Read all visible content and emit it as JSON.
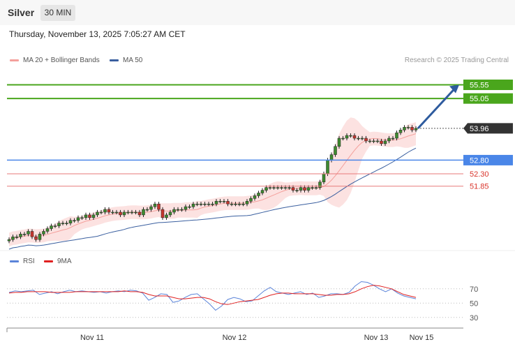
{
  "header": {
    "instrument": "Silver",
    "timeframe": "30 MIN",
    "datetime": "Thursday, November 13, 2025 7:05:27 AM CET"
  },
  "legend": {
    "ma20_label": "MA 20 + Bollinger Bands",
    "ma50_label": "MA 50",
    "rsi_label": "RSI",
    "rsi_ma_label": "9MA"
  },
  "credit": "Research © 2025 Trading Central",
  "colors": {
    "ma20": "#f4a09c",
    "ma50": "#3a5f9f",
    "target": "#4aa61c",
    "pivot": "#4a86e8",
    "support": "#e77a7a",
    "price": "#333333",
    "rsi": "#5b84d9",
    "rsi_ma": "#e02020",
    "arrow": "#2e5b9e"
  },
  "chart_data": [
    {
      "type": "candlestick",
      "title": "",
      "x_tick_labels": [
        "Nov 11",
        "Nov 12",
        "Nov 13",
        "Nov 15"
      ],
      "y_range": [
        49.6,
        56.2
      ],
      "levels": [
        {
          "value": 55.55,
          "label": "55.55",
          "kind": "target"
        },
        {
          "value": 55.05,
          "label": "55.05",
          "kind": "target"
        },
        {
          "value": 53.96,
          "label": "53.96",
          "kind": "price"
        },
        {
          "value": 52.8,
          "label": "52.80",
          "kind": "pivot"
        },
        {
          "value": 52.3,
          "label": "52.30",
          "kind": "support"
        },
        {
          "value": 51.85,
          "label": "51.85",
          "kind": "support"
        }
      ],
      "close": [
        49.9,
        50.0,
        50.0,
        50.1,
        50.1,
        50.2,
        50.0,
        49.9,
        50.1,
        50.2,
        50.3,
        50.4,
        50.4,
        50.5,
        50.5,
        50.5,
        50.6,
        50.6,
        50.7,
        50.7,
        50.8,
        50.7,
        50.8,
        50.9,
        50.9,
        51.0,
        50.9,
        50.9,
        50.9,
        50.8,
        50.9,
        50.9,
        50.9,
        50.9,
        50.8,
        51.0,
        51.0,
        51.1,
        51.2,
        51.0,
        50.7,
        50.8,
        50.9,
        51.0,
        51.0,
        51.0,
        51.1,
        51.1,
        51.2,
        51.2,
        51.2,
        51.2,
        51.2,
        51.2,
        51.3,
        51.3,
        51.3,
        51.2,
        51.2,
        51.2,
        51.2,
        51.2,
        51.3,
        51.4,
        51.5,
        51.6,
        51.7,
        51.8,
        51.8,
        51.8,
        51.8,
        51.8,
        51.8,
        51.8,
        51.7,
        51.7,
        51.8,
        51.7,
        51.8,
        51.8,
        51.8,
        52.0,
        52.3,
        52.8,
        53.0,
        53.3,
        53.6,
        53.6,
        53.7,
        53.7,
        53.6,
        53.6,
        53.6,
        53.5,
        53.5,
        53.5,
        53.5,
        53.4,
        53.5,
        53.6,
        53.6,
        53.8,
        53.9,
        54.0,
        54.0,
        53.9,
        53.96
      ],
      "ma20_y_range": [
        49.6,
        53.9
      ],
      "ma50_y_range": [
        49.4,
        53.1
      ],
      "series": [
        {
          "name": "MA 20 + Bollinger Bands"
        },
        {
          "name": "MA 50"
        }
      ]
    },
    {
      "type": "line",
      "title": "",
      "y_ticks": [
        70,
        50,
        30
      ],
      "y_range": [
        20,
        100
      ],
      "series": [
        {
          "name": "RSI",
          "values": [
            65,
            67,
            66,
            67,
            68,
            62,
            64,
            66,
            63,
            66,
            68,
            66,
            67,
            66,
            65,
            66,
            64,
            66,
            67,
            66,
            68,
            67,
            64,
            54,
            58,
            63,
            62,
            51,
            53,
            58,
            62,
            63,
            56,
            49,
            40,
            46,
            55,
            58,
            56,
            52,
            53,
            60,
            67,
            72,
            66,
            64,
            62,
            64,
            66,
            62,
            64,
            58,
            60,
            63,
            63,
            62,
            65,
            74,
            80,
            79,
            75,
            70,
            66,
            70,
            64,
            60,
            58,
            56
          ]
        },
        {
          "name": "9MA",
          "values": [
            64,
            65,
            65,
            66,
            66,
            66,
            66,
            65,
            65,
            65,
            65,
            66,
            66,
            66,
            66,
            66,
            66,
            66,
            66,
            67,
            66,
            66,
            65,
            62,
            60,
            60,
            60,
            58,
            56,
            56,
            57,
            58,
            58,
            56,
            52,
            49,
            48,
            50,
            52,
            53,
            54,
            55,
            58,
            61,
            63,
            64,
            64,
            63,
            63,
            63,
            63,
            62,
            61,
            61,
            62,
            62,
            63,
            66,
            70,
            73,
            75,
            74,
            72,
            70,
            66,
            62,
            60,
            58
          ]
        }
      ]
    }
  ]
}
